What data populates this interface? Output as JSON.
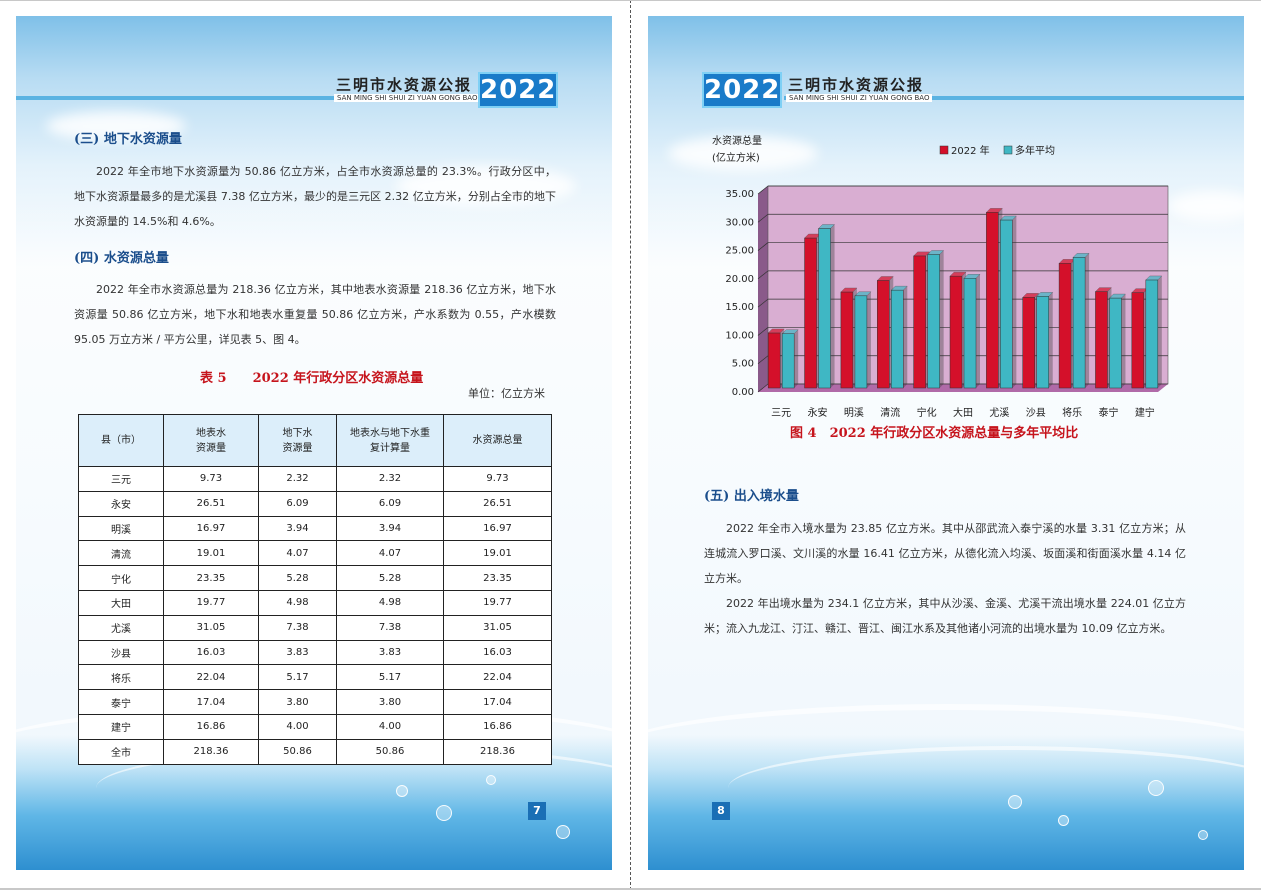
{
  "header": {
    "title": "三明市水资源公报",
    "subtitle": "SAN MING SHI SHUI ZI YUAN GONG BAO",
    "year": "2022"
  },
  "left": {
    "section3": {
      "heading": "(三) 地下水资源量",
      "text": "2022 年全市地下水资源量为 50.86 亿立方米，占全市水资源总量的 23.3%。行政分区中，地下水资源量最多的是尤溪县 7.38 亿立方米，最少的是三元区 2.32 亿立方米，分别占全市的地下水资源量的 14.5%和 4.6%。"
    },
    "section4": {
      "heading": "(四) 水资源总量",
      "text": "2022 年全市水资源总量为 218.36 亿立方米，其中地表水资源量 218.36 亿立方米，地下水资源量 50.86 亿立方米，地下水和地表水重复量 50.86 亿立方米，产水系数为 0.55，产水模数 95.05 万立方米 / 平方公里，详见表 5、图 4。"
    },
    "table_caption": "表 5　　2022 年行政分区水资源总量",
    "unit": "单位：亿立方米",
    "table": {
      "headers": [
        "县（市）",
        "地表水\n资源量",
        "地下水\n资源量",
        "地表水与地下水重\n复计算量",
        "水资源总量"
      ],
      "rows": [
        [
          "三元",
          "9.73",
          "2.32",
          "2.32",
          "9.73"
        ],
        [
          "永安",
          "26.51",
          "6.09",
          "6.09",
          "26.51"
        ],
        [
          "明溪",
          "16.97",
          "3.94",
          "3.94",
          "16.97"
        ],
        [
          "清流",
          "19.01",
          "4.07",
          "4.07",
          "19.01"
        ],
        [
          "宁化",
          "23.35",
          "5.28",
          "5.28",
          "23.35"
        ],
        [
          "大田",
          "19.77",
          "4.98",
          "4.98",
          "19.77"
        ],
        [
          "尤溪",
          "31.05",
          "7.38",
          "7.38",
          "31.05"
        ],
        [
          "沙县",
          "16.03",
          "3.83",
          "3.83",
          "16.03"
        ],
        [
          "将乐",
          "22.04",
          "5.17",
          "5.17",
          "22.04"
        ],
        [
          "泰宁",
          "17.04",
          "3.80",
          "3.80",
          "17.04"
        ],
        [
          "建宁",
          "16.86",
          "4.00",
          "4.00",
          "16.86"
        ],
        [
          "全市",
          "218.36",
          "50.86",
          "50.86",
          "218.36"
        ]
      ]
    },
    "page_number": "7"
  },
  "right": {
    "figure_caption": "图 4　2022 年行政分区水资源总量与多年平均比",
    "section5": {
      "heading": "(五) 出入境水量",
      "p1": "2022 年全市入境水量为 23.85 亿立方米。其中从邵武流入泰宁溪的水量 3.31 亿立方米；从连城流入罗口溪、文川溪的水量 16.41 亿立方米，从德化流入均溪、坂面溪和街面溪水量 4.14 亿立方米。",
      "p2": "2022 年出境水量为 234.1 亿立方米，其中从沙溪、金溪、尤溪干流出境水量 224.01 亿立方米；流入九龙江、汀江、赣江、晋江、闽江水系及其他诸小河流的出境水量为 10.09 亿立方米。"
    },
    "page_number": "8"
  },
  "chart_data": {
    "type": "bar",
    "ylabel_line1": "水资源总量",
    "ylabel_line2": "(亿立方米)",
    "ylim": [
      0,
      35
    ],
    "yticks": [
      "0.00",
      "5.00",
      "10.00",
      "15.00",
      "20.00",
      "25.00",
      "30.00",
      "35.00"
    ],
    "categories": [
      "三元",
      "永安",
      "明溪",
      "清流",
      "宁化",
      "大田",
      "尤溪",
      "沙县",
      "将乐",
      "泰宁",
      "建宁"
    ],
    "series": [
      {
        "name": "2022 年",
        "color": "#d4102a",
        "values": [
          9.73,
          26.51,
          16.97,
          19.01,
          23.35,
          19.77,
          31.05,
          16.03,
          22.04,
          17.04,
          16.86
        ]
      },
      {
        "name": "多年平均",
        "color": "#3fb7c4",
        "values": [
          9.6,
          28.2,
          16.3,
          17.3,
          23.6,
          19.4,
          29.7,
          16.2,
          23.1,
          15.9,
          19.1
        ]
      }
    ],
    "legend_position": "top",
    "plot_background": "#d9aed2",
    "grid": true
  }
}
